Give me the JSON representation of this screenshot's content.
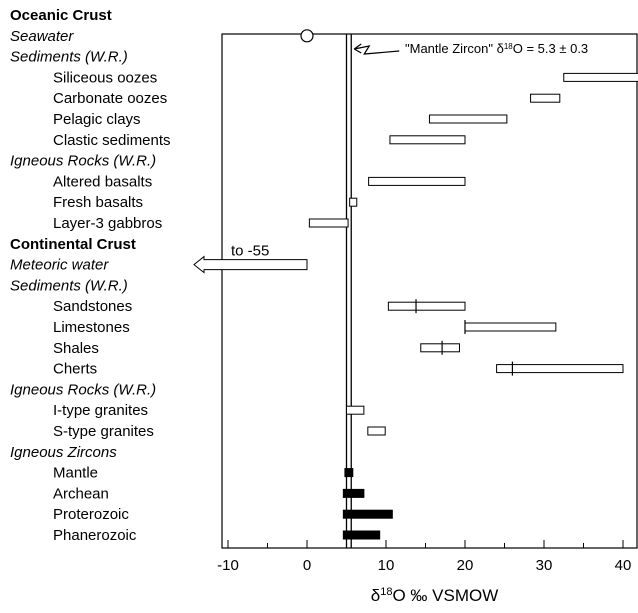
{
  "chart_data": {
    "type": "range-bar",
    "title": "",
    "xlabel": "δ18O ‰ VSMOW",
    "ylabel": "",
    "xlim": [
      -10,
      45
    ],
    "xticks": [
      -10,
      0,
      10,
      20,
      30,
      40
    ],
    "grid": false,
    "legend": "none",
    "colors": {
      "frame": "#000000",
      "open_bar": "#ffffff",
      "filled_bar": "#000000"
    },
    "reference_lines": [
      {
        "x": 5.0
      },
      {
        "x": 5.6
      }
    ],
    "reference_label": {
      "text": "\"Mantle Zircon\" δ18O = 5.3 ± 0.3"
    },
    "rows": [
      {
        "label": "Oceanic Crust",
        "style": "heading"
      },
      {
        "label": "Seawater",
        "style": "category",
        "marker": {
          "type": "circle",
          "x": 0
        }
      },
      {
        "label": "Sediments (W.R.)",
        "style": "category"
      },
      {
        "label": "Siliceous oozes",
        "style": "item",
        "bar": {
          "min": 32.5,
          "max": 42.5,
          "fill": "open"
        }
      },
      {
        "label": "Carbonate oozes",
        "style": "item",
        "bar": {
          "min": 28.3,
          "max": 32.0,
          "fill": "open"
        }
      },
      {
        "label": "Pelagic clays",
        "style": "item",
        "bar": {
          "min": 15.5,
          "max": 25.3,
          "fill": "open"
        }
      },
      {
        "label": "Clastic sediments",
        "style": "item",
        "bar": {
          "min": 10.5,
          "max": 20.0,
          "fill": "open"
        }
      },
      {
        "label": "Igneous Rocks (W.R.)",
        "style": "category"
      },
      {
        "label": "Altered basalts",
        "style": "item",
        "bar": {
          "min": 7.8,
          "max": 20.0,
          "fill": "open"
        }
      },
      {
        "label": "Fresh basalts",
        "style": "item",
        "bar": {
          "min": 5.4,
          "max": 6.3,
          "fill": "open"
        }
      },
      {
        "label": "Layer-3 gabbros",
        "style": "item",
        "bar": {
          "min": 0.3,
          "max": 5.2,
          "fill": "open"
        }
      },
      {
        "label": "Continental Crust",
        "style": "heading"
      },
      {
        "label": "Meteoric water",
        "style": "category",
        "arrow": {
          "max": 0,
          "text": "to -55"
        }
      },
      {
        "label": "Sediments (W.R.)",
        "style": "category"
      },
      {
        "label": "Sandstones",
        "style": "item",
        "bar": {
          "min": 10.3,
          "max": 20.0,
          "fill": "open",
          "mark": 13.8
        }
      },
      {
        "label": "Limestones",
        "style": "item",
        "bar": {
          "min": 20.0,
          "max": 31.5,
          "fill": "open",
          "mark": 20.0
        }
      },
      {
        "label": "Shales",
        "style": "item",
        "bar": {
          "min": 14.4,
          "max": 19.3,
          "fill": "open",
          "mark": 17.1
        }
      },
      {
        "label": "Cherts",
        "style": "item",
        "bar": {
          "min": 24.0,
          "max": 40.0,
          "fill": "open",
          "mark": 26.0
        }
      },
      {
        "label": "Igneous Rocks (W.R.)",
        "style": "category"
      },
      {
        "label": "I-type granites",
        "style": "item",
        "bar": {
          "min": 5.0,
          "max": 7.2,
          "fill": "open"
        }
      },
      {
        "label": "S-type granites",
        "style": "item",
        "bar": {
          "min": 7.7,
          "max": 9.9,
          "fill": "open"
        }
      },
      {
        "label": "Igneous Zircons",
        "style": "category"
      },
      {
        "label": "Mantle",
        "style": "item",
        "bar": {
          "min": 4.8,
          "max": 5.8,
          "fill": "filled"
        }
      },
      {
        "label": "Archean",
        "style": "item",
        "bar": {
          "min": 4.6,
          "max": 7.2,
          "fill": "filled"
        }
      },
      {
        "label": "Proterozoic",
        "style": "item",
        "bar": {
          "min": 4.6,
          "max": 10.8,
          "fill": "filled"
        }
      },
      {
        "label": "Phanerozoic",
        "style": "item",
        "bar": {
          "min": 4.6,
          "max": 9.2,
          "fill": "filled"
        }
      }
    ]
  }
}
